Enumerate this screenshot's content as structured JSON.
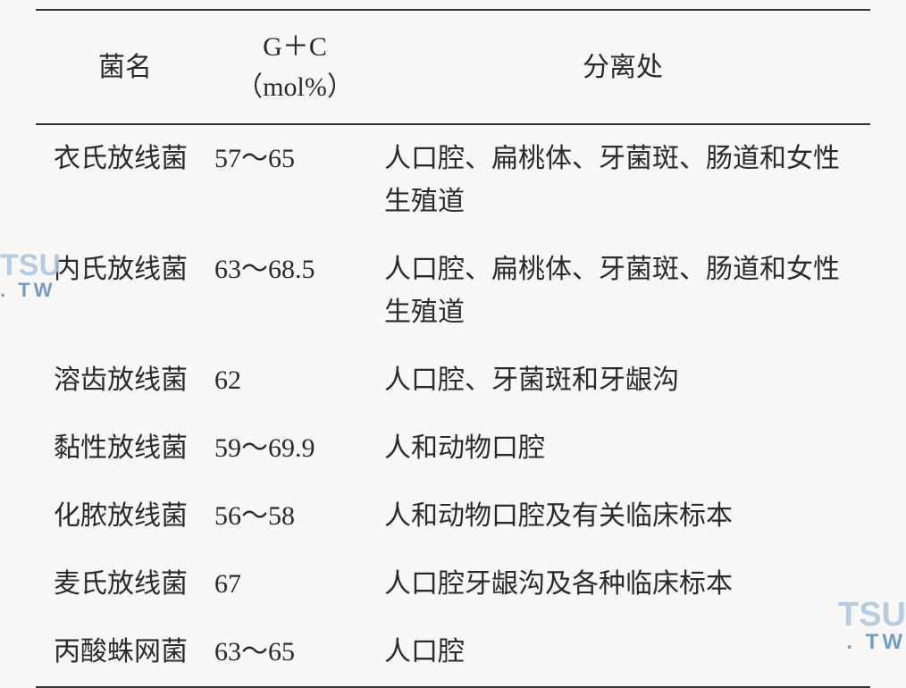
{
  "table": {
    "headers": {
      "col1": "菌名",
      "col2_line1": "G＋C",
      "col2_line2": "（mol%）",
      "col3": "分离处"
    },
    "rows": [
      {
        "name": "衣氏放线菌",
        "gc": "57～65",
        "isolation": "人口腔、扁桃体、牙菌斑、肠道和女性生殖道"
      },
      {
        "name": "内氏放线菌",
        "gc": "63～68.5",
        "isolation": "人口腔、扁桃体、牙菌斑、肠道和女性生殖道"
      },
      {
        "name": "溶齿放线菌",
        "gc": "62",
        "isolation": "人口腔、牙菌斑和牙龈沟"
      },
      {
        "name": "黏性放线菌",
        "gc": "59～69.9",
        "isolation": "人和动物口腔"
      },
      {
        "name": "化脓放线菌",
        "gc": "56～58",
        "isolation": "人和动物口腔及有关临床标本"
      },
      {
        "name": "麦氏放线菌",
        "gc": "67",
        "isolation": "人口腔牙龈沟及各种临床标本"
      },
      {
        "name": "丙酸蛛网菌",
        "gc": "63～65",
        "isolation": "人口腔"
      }
    ]
  },
  "watermark": {
    "main": "TSU",
    "sub": ". TW"
  },
  "colors": {
    "background": "#f9f8f6",
    "text": "#2a2a2a",
    "border": "#333333",
    "watermark_main": "#a9c6e0",
    "watermark_sub": "#5a8fc0"
  }
}
